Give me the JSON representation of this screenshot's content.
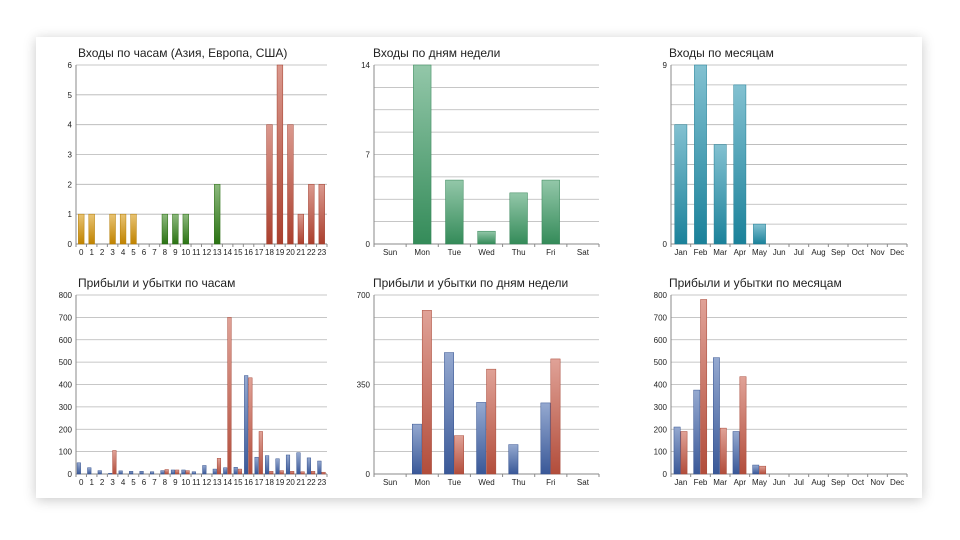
{
  "colors": {
    "asia": "#d59200",
    "europe": "#2f7f14",
    "usa": "#bd4632",
    "profit": "#3f62a9",
    "loss": "#c65542",
    "weekday_bar": "#3a9a63",
    "month_bar": "#1d8fab"
  },
  "chart_data": [
    {
      "id": "hours_entries",
      "type": "bar",
      "title": "Входы по часам (Азия, Европа, США)",
      "categories": [
        "0",
        "1",
        "2",
        "3",
        "4",
        "5",
        "6",
        "7",
        "8",
        "9",
        "10",
        "11",
        "12",
        "13",
        "14",
        "15",
        "16",
        "17",
        "18",
        "19",
        "20",
        "21",
        "22",
        "23"
      ],
      "series": [
        {
          "name": "",
          "color_key": "asia",
          "values": [
            1,
            1,
            0,
            1,
            1,
            1,
            0,
            0,
            0,
            0,
            0,
            0,
            0,
            0,
            0,
            0,
            0,
            0,
            0,
            0,
            0,
            0,
            0,
            0
          ]
        },
        {
          "name": "",
          "color_key": "europe",
          "values": [
            0,
            0,
            0,
            0,
            0,
            0,
            0,
            0,
            1,
            1,
            1,
            0,
            0,
            2,
            0,
            0,
            0,
            0,
            0,
            0,
            0,
            0,
            0,
            0
          ]
        },
        {
          "name": "",
          "color_key": "usa",
          "values": [
            0,
            0,
            0,
            0,
            0,
            0,
            0,
            0,
            0,
            0,
            0,
            0,
            0,
            0,
            0,
            0,
            0,
            0,
            4,
            6,
            4,
            1,
            2,
            2
          ]
        }
      ],
      "yticks": [
        0,
        1,
        2,
        3,
        4,
        5,
        6
      ],
      "ylim": [
        0,
        6
      ]
    },
    {
      "id": "weekday_entries",
      "type": "bar",
      "title": "Входы по дням недели",
      "categories": [
        "Sun",
        "Mon",
        "Tue",
        "Wed",
        "Thu",
        "Fri",
        "Sat"
      ],
      "series": [
        {
          "name": "",
          "color_key": "weekday_bar",
          "values": [
            0,
            14,
            5,
            1,
            4,
            5,
            0
          ]
        }
      ],
      "yticks": [
        0,
        7,
        14
      ],
      "ylim": [
        0,
        14
      ]
    },
    {
      "id": "month_entries",
      "type": "bar",
      "title": "Входы по месяцам",
      "categories": [
        "Jan",
        "Feb",
        "Mar",
        "Apr",
        "May",
        "Jun",
        "Jul",
        "Aug",
        "Sep",
        "Oct",
        "Nov",
        "Dec"
      ],
      "series": [
        {
          "name": "",
          "color_key": "month_bar",
          "values": [
            6,
            9,
            5,
            8,
            1,
            0,
            0,
            0,
            0,
            0,
            0,
            0
          ]
        }
      ],
      "yticks": [
        0,
        9
      ],
      "ylim": [
        0,
        9
      ]
    },
    {
      "id": "hours_pnl",
      "type": "bar",
      "title": "Прибыли и убытки по часам",
      "categories": [
        "0",
        "1",
        "2",
        "3",
        "4",
        "5",
        "6",
        "7",
        "8",
        "9",
        "10",
        "11",
        "12",
        "13",
        "14",
        "15",
        "16",
        "17",
        "18",
        "19",
        "20",
        "21",
        "22",
        "23"
      ],
      "series": [
        {
          "name": "",
          "color_key": "profit",
          "values": [
            50,
            28,
            15,
            3,
            14,
            12,
            12,
            10,
            15,
            18,
            18,
            10,
            38,
            22,
            28,
            30,
            440,
            75,
            82,
            68,
            85,
            95,
            72,
            58
          ]
        },
        {
          "name": "",
          "color_key": "loss",
          "values": [
            0,
            0,
            0,
            105,
            0,
            0,
            0,
            0,
            20,
            18,
            15,
            0,
            0,
            70,
            700,
            22,
            430,
            190,
            12,
            15,
            12,
            10,
            12,
            8
          ]
        }
      ],
      "yticks": [
        0,
        100,
        200,
        300,
        400,
        500,
        600,
        700,
        800
      ],
      "ylim": [
        0,
        800
      ]
    },
    {
      "id": "weekday_pnl",
      "type": "bar",
      "title": "Прибыли и убытки по дням недели",
      "categories": [
        "Sun",
        "Mon",
        "Tue",
        "Wed",
        "Thu",
        "Fri",
        "Sat"
      ],
      "series": [
        {
          "name": "",
          "color_key": "profit",
          "values": [
            0,
            195,
            475,
            280,
            115,
            278,
            0
          ]
        },
        {
          "name": "",
          "color_key": "loss",
          "values": [
            0,
            640,
            150,
            410,
            0,
            450,
            0
          ]
        }
      ],
      "yticks": [
        0,
        350,
        700
      ],
      "ylim": [
        0,
        700
      ]
    },
    {
      "id": "month_pnl",
      "type": "bar",
      "title": "Прибыли и убытки по месяцам",
      "categories": [
        "Jan",
        "Feb",
        "Mar",
        "Apr",
        "May",
        "Jun",
        "Jul",
        "Aug",
        "Sep",
        "Oct",
        "Nov",
        "Dec"
      ],
      "series": [
        {
          "name": "",
          "color_key": "profit",
          "values": [
            210,
            375,
            520,
            190,
            40,
            0,
            0,
            0,
            0,
            0,
            0,
            0
          ]
        },
        {
          "name": "",
          "color_key": "loss",
          "values": [
            190,
            780,
            205,
            435,
            35,
            0,
            0,
            0,
            0,
            0,
            0,
            0
          ]
        }
      ],
      "yticks": [
        0,
        100,
        200,
        300,
        400,
        500,
        600,
        700,
        800
      ],
      "ylim": [
        0,
        800
      ]
    }
  ]
}
